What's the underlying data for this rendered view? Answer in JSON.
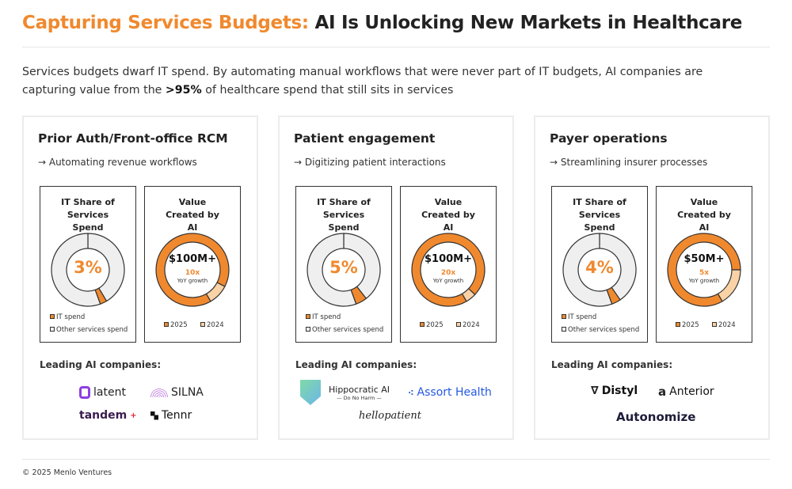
{
  "header": {
    "title_accent": "Capturing Services Budgets:",
    "title_rest": " AI Is Unlocking New Markets in Healthcare"
  },
  "subtitle": {
    "before": "Services budgets dwarf IT spend. By automating manual workflows that were never part of IT budgets, AI companies are capturing value from the ",
    "bold": ">95%",
    "after": " of healthcare spend that still sits in services"
  },
  "colors": {
    "accent": "#F0892E",
    "light_accent": "#F9D2A6",
    "ring_gray": "#EFEFEF"
  },
  "labels": {
    "it_share_title": "IT Share of Services Spend",
    "value_title": "Value Created by AI",
    "legend_it": "IT spend",
    "legend_other": "Other services spend",
    "legend_2025": "2025",
    "legend_2024": "2024",
    "yoy": "YoY growth",
    "leading": "Leading AI companies:"
  },
  "cards": [
    {
      "title": "Prior Auth/Front-office RCM",
      "tagline": "→ Automating revenue workflows",
      "it_share": "3%",
      "it_share_value": 3,
      "value": "$100M+",
      "growth": "10x",
      "growth_multiple": 10,
      "companies": [
        "latent",
        "SILNA",
        "tandem",
        "Tennr"
      ]
    },
    {
      "title": "Patient engagement",
      "tagline": "→ Digitizing patient interactions",
      "it_share": "5%",
      "it_share_value": 5,
      "value": "$100M+",
      "growth": "20x",
      "growth_multiple": 20,
      "companies": [
        "Hippocratic AI",
        "Assort Health",
        "hellopatient"
      ],
      "hippocratic_tagline": "— Do No Harm —"
    },
    {
      "title": "Payer operations",
      "tagline": "→ Streamlining insurer processes",
      "it_share": "4%",
      "it_share_value": 4,
      "value": "$50M+",
      "growth": "5x",
      "growth_multiple": 5,
      "companies": [
        "Distyl",
        "Anterior",
        "Autonomize"
      ]
    }
  ],
  "footer": "© 2025 Menlo Ventures"
}
